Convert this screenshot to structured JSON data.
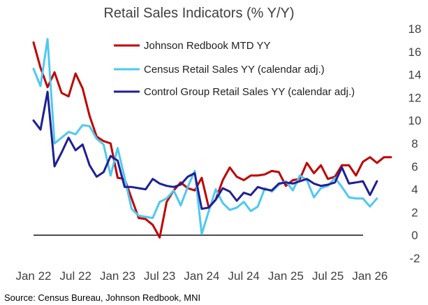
{
  "chart_data": {
    "type": "line",
    "title": "Retail Sales Indicators (% Y/Y)",
    "source": "Source: Census Bureau, Johnson Redbook, MNI",
    "xlabel": "",
    "ylabel": "",
    "ylim": [
      -2,
      18
    ],
    "yticks": [
      -2,
      0,
      2,
      4,
      6,
      8,
      10,
      12,
      14,
      16,
      18
    ],
    "y_axis_side": "right",
    "xlim": [
      "2022-01",
      "2026-04"
    ],
    "xticks": [
      {
        "label": "Jan 22",
        "date": "2022-01"
      },
      {
        "label": "Jul 22",
        "date": "2022-07"
      },
      {
        "label": "Jan 23",
        "date": "2023-01"
      },
      {
        "label": "Jul 23",
        "date": "2023-07"
      },
      {
        "label": "Jan 24",
        "date": "2024-01"
      },
      {
        "label": "Jul 24",
        "date": "2024-07"
      },
      {
        "label": "Jan 25",
        "date": "2025-01"
      },
      {
        "label": "Jul 25",
        "date": "2025-07"
      },
      {
        "label": "Jan 26",
        "date": "2026-01"
      }
    ],
    "zero_line": true,
    "grid": false,
    "legend_position": "top",
    "series": [
      {
        "name": "Johnson Redbook MTD YY",
        "color": "#c00000",
        "x": [
          "2022-01",
          "2022-02",
          "2022-03",
          "2022-04",
          "2022-05",
          "2022-06",
          "2022-07",
          "2022-08",
          "2022-09",
          "2022-10",
          "2022-11",
          "2022-12",
          "2023-01",
          "2023-02",
          "2023-03",
          "2023-04",
          "2023-05",
          "2023-06",
          "2023-07",
          "2023-08",
          "2023-09",
          "2023-10",
          "2023-11",
          "2023-12",
          "2024-01",
          "2024-02",
          "2024-03",
          "2024-04",
          "2024-05",
          "2024-06",
          "2024-07",
          "2024-08",
          "2024-09",
          "2024-10",
          "2024-11",
          "2024-12",
          "2025-01",
          "2025-02",
          "2025-03",
          "2025-04",
          "2025-05",
          "2025-06",
          "2025-07",
          "2025-08",
          "2025-09",
          "2025-10",
          "2025-11",
          "2025-12",
          "2026-01",
          "2026-02",
          "2026-03",
          "2026-04"
        ],
        "values": [
          16.8,
          14.6,
          12.9,
          14.2,
          12.4,
          12.1,
          14.1,
          12.8,
          10.4,
          8.6,
          8.2,
          8.0,
          5.0,
          4.9,
          3.2,
          1.5,
          1.4,
          0.9,
          -0.2,
          2.9,
          3.9,
          4.6,
          4.1,
          3.9,
          5.0,
          2.4,
          3.1,
          4.8,
          5.9,
          5.1,
          4.8,
          5.2,
          5.2,
          5.3,
          5.6,
          5.5,
          4.3,
          4.8,
          4.9,
          6.3,
          5.4,
          6.1,
          4.9,
          5.1,
          6.1,
          6.1,
          5.2,
          6.4,
          6.8,
          6.3,
          6.8,
          6.8
        ]
      },
      {
        "name": "Census Retail Sales YY (calendar adj.)",
        "color": "#4fc8f0",
        "x": [
          "2022-01",
          "2022-02",
          "2022-03",
          "2022-04",
          "2022-05",
          "2022-06",
          "2022-07",
          "2022-08",
          "2022-09",
          "2022-10",
          "2022-11",
          "2022-12",
          "2023-01",
          "2023-02",
          "2023-03",
          "2023-04",
          "2023-05",
          "2023-06",
          "2023-07",
          "2023-08",
          "2023-09",
          "2023-10",
          "2023-11",
          "2023-12",
          "2024-01",
          "2024-02",
          "2024-03",
          "2024-04",
          "2024-05",
          "2024-06",
          "2024-07",
          "2024-08",
          "2024-09",
          "2024-10",
          "2024-11",
          "2024-12",
          "2025-01",
          "2025-02",
          "2025-03",
          "2025-04",
          "2025-05",
          "2025-06",
          "2025-07",
          "2025-08",
          "2025-09",
          "2025-10",
          "2025-11",
          "2025-12",
          "2026-01",
          "2026-02"
        ],
        "values": [
          14.5,
          13.0,
          17.1,
          8.0,
          8.5,
          9.0,
          8.8,
          9.6,
          9.5,
          8.4,
          7.9,
          5.2,
          7.6,
          5.0,
          2.3,
          1.7,
          1.6,
          1.5,
          2.9,
          3.2,
          3.9,
          2.6,
          4.2,
          5.6,
          0.1,
          2.1,
          4.0,
          2.8,
          2.2,
          2.4,
          2.9,
          2.1,
          2.5,
          4.1,
          3.8,
          4.4,
          4.7,
          3.9,
          5.2,
          4.8,
          3.3,
          4.1,
          4.3,
          5.0,
          4.2,
          3.3,
          3.2,
          3.2,
          2.5,
          3.2
        ]
      },
      {
        "name": "Control Group Retail Sales YY (calendar adj.)",
        "color": "#1f1f96",
        "x": [
          "2022-01",
          "2022-02",
          "2022-03",
          "2022-04",
          "2022-05",
          "2022-06",
          "2022-07",
          "2022-08",
          "2022-09",
          "2022-10",
          "2022-11",
          "2022-12",
          "2023-01",
          "2023-02",
          "2023-03",
          "2023-04",
          "2023-05",
          "2023-06",
          "2023-07",
          "2023-08",
          "2023-09",
          "2023-10",
          "2023-11",
          "2023-12",
          "2024-01",
          "2024-02",
          "2024-03",
          "2024-04",
          "2024-05",
          "2024-06",
          "2024-07",
          "2024-08",
          "2024-09",
          "2024-10",
          "2024-11",
          "2024-12",
          "2025-01",
          "2025-02",
          "2025-03",
          "2025-04",
          "2025-05",
          "2025-06",
          "2025-07",
          "2025-08",
          "2025-09",
          "2025-10",
          "2025-11",
          "2025-12",
          "2026-01",
          "2026-02"
        ],
        "values": [
          10.0,
          9.2,
          12.5,
          6.0,
          7.2,
          8.5,
          7.4,
          7.9,
          6.1,
          5.1,
          5.5,
          6.9,
          6.5,
          4.2,
          4.2,
          4.1,
          4.0,
          4.9,
          4.5,
          4.3,
          4.2,
          4.4,
          5.1,
          5.4,
          2.3,
          2.4,
          3.1,
          4.1,
          3.8,
          3.0,
          3.7,
          3.5,
          4.2,
          4.0,
          3.9,
          4.5,
          4.6,
          4.5,
          4.7,
          4.9,
          4.5,
          4.3,
          4.4,
          4.6,
          5.9,
          4.5,
          4.6,
          4.7,
          3.5,
          4.7
        ]
      }
    ]
  }
}
